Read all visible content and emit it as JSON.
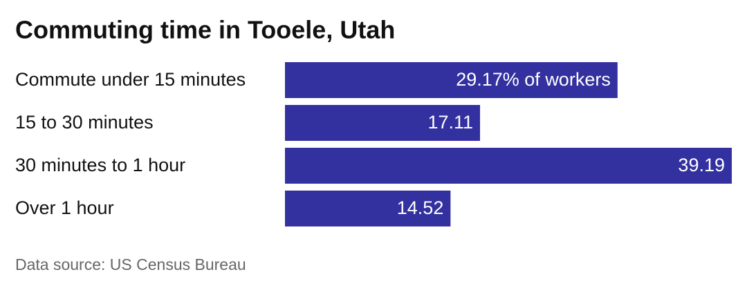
{
  "chart_data": {
    "type": "bar",
    "orientation": "horizontal",
    "title": "Commuting time in Tooele, Utah",
    "categories": [
      "Commute under 15 minutes",
      "15 to 30 minutes",
      "30 minutes to 1 hour",
      "Over 1 hour"
    ],
    "values": [
      29.17,
      17.11,
      39.19,
      14.52
    ],
    "value_labels": [
      "29.17% of workers",
      "17.11",
      "39.19",
      "14.52"
    ],
    "color": "#3330a0",
    "source": "Data source: US Census Bureau"
  }
}
